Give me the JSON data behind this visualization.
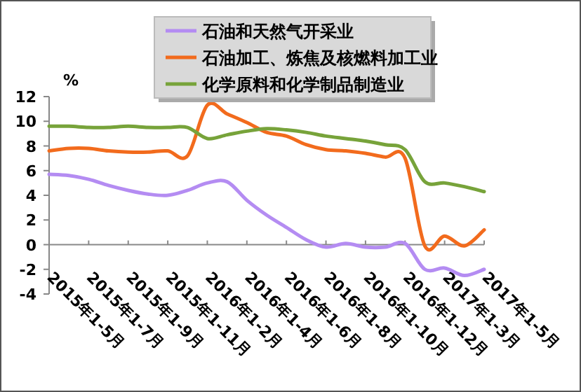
{
  "chart_data": {
    "type": "line",
    "ylabel": "%",
    "legend": "top",
    "ylim": [
      -4,
      12
    ],
    "yticks": [
      -4,
      -2,
      0,
      2,
      4,
      6,
      8,
      10,
      12
    ],
    "categories": [
      "2015年1-5月",
      null,
      "2015年1-7月",
      null,
      "2015年1-9月",
      null,
      "2015年1-11月",
      null,
      "2016年1-2月",
      null,
      "2016年1-4月",
      null,
      "2016年1-6月",
      null,
      "2016年1-8月",
      null,
      "2016年1-10月",
      null,
      "2016年1-12月",
      null,
      "2017年1-3月",
      null,
      "2017年1-5月"
    ],
    "series": [
      {
        "name": "石油和天然气开采业",
        "color": "#b48cf2",
        "values": [
          5.7,
          5.6,
          5.3,
          4.8,
          4.4,
          4.1,
          4.0,
          4.4,
          5.0,
          5.1,
          3.6,
          2.4,
          1.4,
          0.4,
          -0.2,
          0.1,
          -0.2,
          -0.2,
          0.1,
          -2.0,
          -1.9,
          -2.5,
          -2.0
        ]
      },
      {
        "name": "石油加工、炼焦及核燃料加工业",
        "color": "#f26b1d",
        "values": [
          7.6,
          7.8,
          7.8,
          7.6,
          7.5,
          7.5,
          7.6,
          7.2,
          11.3,
          10.6,
          9.9,
          9.1,
          8.8,
          8.1,
          7.7,
          7.6,
          7.4,
          7.1,
          7.0,
          -0.1,
          0.7,
          -0.1,
          1.2
        ]
      },
      {
        "name": "化学原料和化学制品制造业",
        "color": "#77a33a",
        "values": [
          9.6,
          9.6,
          9.5,
          9.5,
          9.6,
          9.5,
          9.5,
          9.5,
          8.6,
          8.9,
          9.2,
          9.4,
          9.3,
          9.1,
          8.8,
          8.6,
          8.4,
          8.1,
          7.7,
          5.1,
          5.0,
          4.7,
          4.3
        ]
      }
    ]
  }
}
